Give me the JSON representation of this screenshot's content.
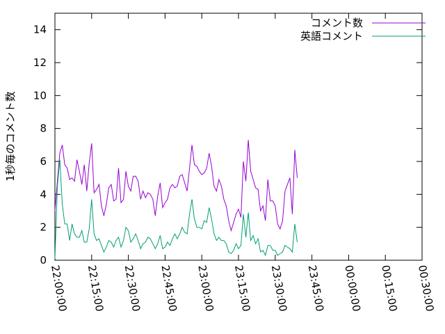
{
  "chart_data": {
    "type": "line",
    "title": "",
    "xlabel": "",
    "ylabel": "1秒毎のコメント数",
    "ylim": [
      0,
      15
    ],
    "xlim": [
      "22:00:00",
      "00:30:00"
    ],
    "xticks": [
      "22:00:00",
      "22:15:00",
      "22:30:00",
      "22:45:00",
      "23:00:00",
      "23:15:00",
      "23:30:00",
      "23:45:00",
      "00:00:00",
      "00:15:00",
      "00:30:00"
    ],
    "yticks": [
      "0",
      "2",
      "4",
      "6",
      "8",
      "10",
      "12",
      "14"
    ],
    "grid": false,
    "legend_position": "top-right",
    "x_start_label": "22:00:00",
    "x_interval_minutes": 1,
    "series": [
      {
        "name": "コメント数",
        "color": "#9400d3",
        "values": [
          3.0,
          4.8,
          6.5,
          7.0,
          5.8,
          5.6,
          4.9,
          5.0,
          4.8,
          6.1,
          5.4,
          4.6,
          5.8,
          4.2,
          5.9,
          7.1,
          4.1,
          4.3,
          4.6,
          3.3,
          2.7,
          3.4,
          4.4,
          4.6,
          3.6,
          3.7,
          5.6,
          3.5,
          3.7,
          5.4,
          4.5,
          4.2,
          5.1,
          5.1,
          4.8,
          3.7,
          4.2,
          3.8,
          4.1,
          4.0,
          3.7,
          2.7,
          3.9,
          4.7,
          3.2,
          3.5,
          3.7,
          4.4,
          4.6,
          4.4,
          4.5,
          5.1,
          5.2,
          4.7,
          4.2,
          5.6,
          7.0,
          5.8,
          5.7,
          5.4,
          5.2,
          5.3,
          5.6,
          6.5,
          5.7,
          4.5,
          4.2,
          4.9,
          4.5,
          3.7,
          3.3,
          2.4,
          1.8,
          2.3,
          2.8,
          3.1,
          2.6,
          6.0,
          4.8,
          7.3,
          5.4,
          4.9,
          4.4,
          4.3,
          3.0,
          3.3,
          2.4,
          4.9,
          3.6,
          3.6,
          3.3,
          2.2,
          1.9,
          2.4,
          4.2,
          4.6,
          5.0,
          2.8,
          6.7,
          5.0
        ]
      },
      {
        "name": "英語コメント",
        "color": "#009e73",
        "values": [
          0.1,
          4.5,
          6.1,
          3.4,
          2.2,
          2.2,
          1.2,
          2.2,
          1.6,
          1.4,
          1.4,
          1.8,
          1.1,
          1.1,
          1.9,
          3.7,
          1.6,
          1.2,
          1.3,
          0.9,
          0.5,
          0.8,
          1.2,
          1.1,
          0.8,
          1.2,
          1.4,
          0.8,
          1.2,
          2.0,
          1.8,
          1.1,
          1.3,
          1.6,
          1.2,
          0.7,
          1.0,
          1.1,
          1.4,
          1.3,
          1.0,
          0.7,
          1.0,
          1.5,
          0.7,
          0.8,
          1.1,
          0.9,
          1.3,
          1.6,
          1.3,
          1.6,
          2.0,
          1.7,
          1.6,
          2.8,
          3.7,
          2.5,
          2.0,
          2.0,
          1.9,
          2.4,
          2.3,
          3.2,
          2.5,
          1.6,
          1.2,
          1.4,
          1.2,
          1.2,
          1.0,
          0.5,
          0.4,
          0.6,
          1.0,
          0.7,
          0.9,
          2.8,
          1.4,
          2.9,
          1.2,
          1.5,
          1.0,
          1.3,
          0.5,
          0.6,
          0.3,
          0.9,
          0.9,
          0.6,
          0.6,
          0.3,
          0.4,
          0.5,
          0.9,
          0.8,
          0.7,
          0.5,
          2.2,
          1.1
        ]
      }
    ]
  }
}
